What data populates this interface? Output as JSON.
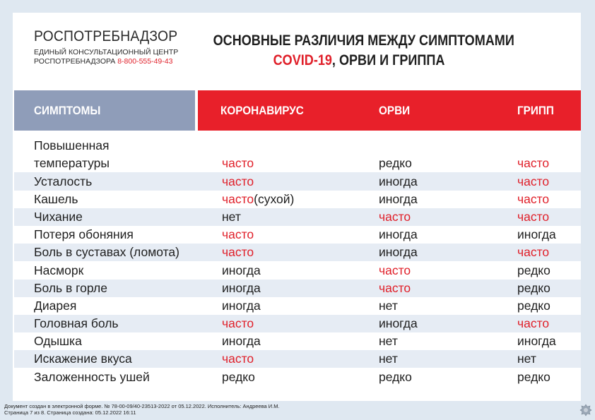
{
  "org": {
    "name": "РОСПОТРЕБНАДЗОР",
    "line1": "ЕДИНЫЙ КОНСУЛЬТАЦИОННЫЙ ЦЕНТР",
    "line2": "РОСПОТРЕБНАДЗОРА",
    "phone": "8-800-555-49-43"
  },
  "title": {
    "line1": "ОСНОВНЫЕ РАЗЛИЧИЯ МЕЖДУ СИМПТОМАМИ",
    "highlight": "COVID-19",
    "rest": ", ОРВИ И ГРИППА"
  },
  "table": {
    "headers": [
      "СИМПТОМЫ",
      "КОРОНАВИРУС",
      "ОРВИ",
      "ГРИПП"
    ],
    "rows": [
      {
        "symptom": [
          "Повышенная",
          "температуры"
        ],
        "covid": "часто",
        "covid_red": true,
        "orvi": "редко",
        "orvi_red": false,
        "flu": "часто",
        "flu_red": true
      },
      {
        "symptom": "Усталость",
        "covid": "часто",
        "covid_red": true,
        "orvi": "иногда",
        "orvi_red": false,
        "flu": "часто",
        "flu_red": true
      },
      {
        "symptom": "Кашель",
        "covid": "часто",
        "covid_extra": "(сухой)",
        "covid_red": true,
        "orvi": "иногда",
        "orvi_red": false,
        "flu": "часто",
        "flu_red": true
      },
      {
        "symptom": "Чихание",
        "covid": "нет",
        "covid_red": false,
        "orvi": "часто",
        "orvi_red": true,
        "flu": "часто",
        "flu_red": true
      },
      {
        "symptom": "Потеря обоняния",
        "covid": "часто",
        "covid_red": true,
        "orvi": "иногда",
        "orvi_red": false,
        "flu": "иногда",
        "flu_red": false
      },
      {
        "symptom": "Боль в суставах (ломота)",
        "covid": "часто",
        "covid_red": true,
        "orvi": "иногда",
        "orvi_red": false,
        "flu": "часто",
        "flu_red": true
      },
      {
        "symptom": "Насморк",
        "covid": "иногда",
        "covid_red": false,
        "orvi": "часто",
        "orvi_red": true,
        "flu": "редко",
        "flu_red": false
      },
      {
        "symptom": "Боль в горле",
        "covid": "иногда",
        "covid_red": false,
        "orvi": "часто",
        "orvi_red": true,
        "flu": "редко",
        "flu_red": false
      },
      {
        "symptom": "Диарея",
        "covid": "иногда",
        "covid_red": false,
        "orvi": "нет",
        "orvi_red": false,
        "flu": "редко",
        "flu_red": false
      },
      {
        "symptom": "Головная боль",
        "covid": "часто",
        "covid_red": true,
        "orvi": "иногда",
        "orvi_red": false,
        "flu": "часто",
        "flu_red": true
      },
      {
        "symptom": "Одышка",
        "covid": "иногда",
        "covid_red": false,
        "orvi": "нет",
        "orvi_red": false,
        "flu": "иногда",
        "flu_red": false
      },
      {
        "symptom": "Искажение вкуса",
        "covid": "часто",
        "covid_red": true,
        "orvi": "нет",
        "orvi_red": false,
        "flu": "нет",
        "flu_red": false
      },
      {
        "symptom": "Заложенность ушей",
        "covid": "редко",
        "covid_red": false,
        "orvi": "редко",
        "orvi_red": false,
        "flu": "редко",
        "flu_red": false
      }
    ]
  },
  "footer": {
    "line1": "Документ создан в электронной форме. № 78-00-09/40-23513-2022 от 05.12.2022. Исполнитель: Андреева И.М.",
    "line2": "Страница 7 из 8. Страница создана: 05.12.2022 16:11"
  },
  "colors": {
    "accent_red": "#e8202a",
    "header_blue": "#8f9db9",
    "row_alt": "#e6ecf4"
  },
  "icons": {
    "emblem": "coat-of-arms-icon"
  }
}
